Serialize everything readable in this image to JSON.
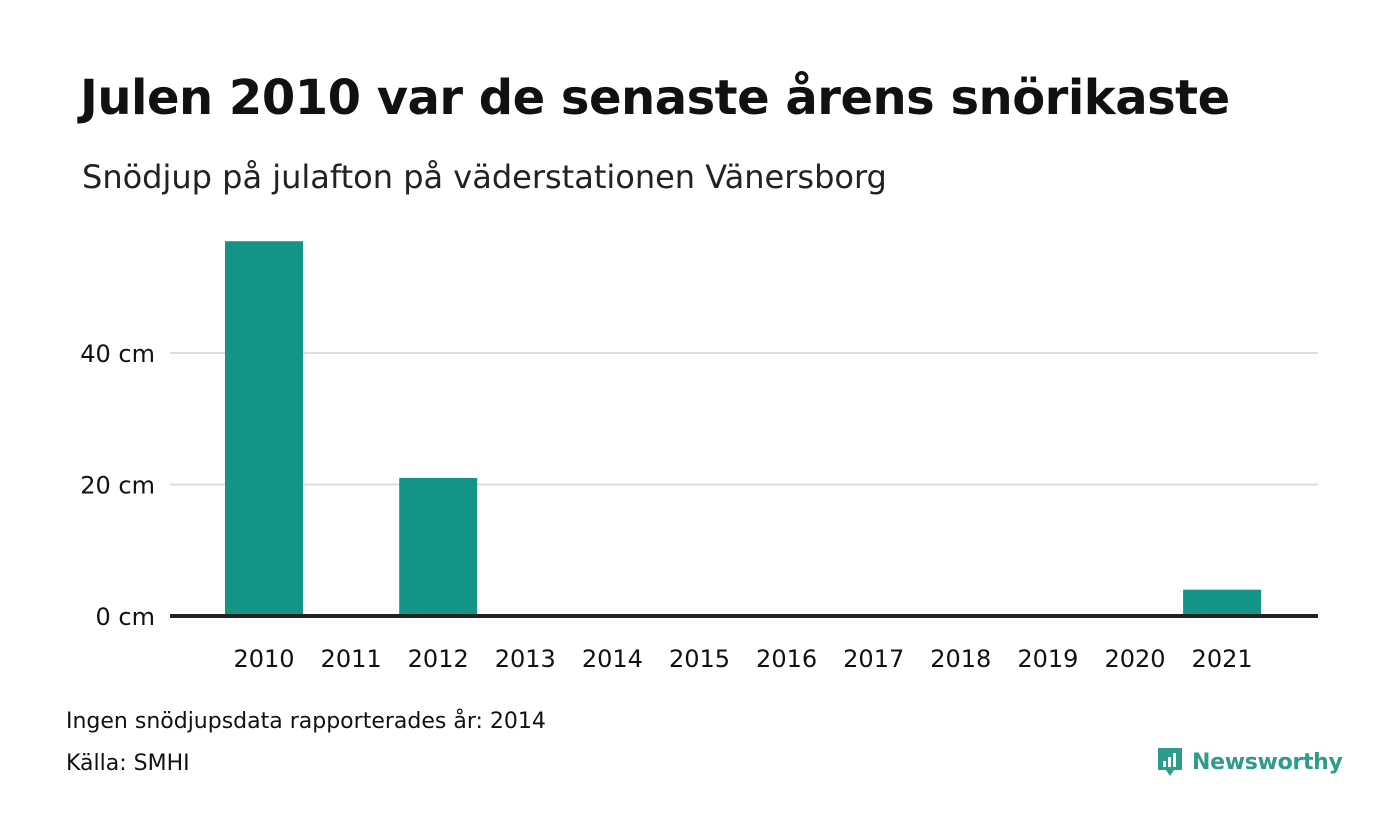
{
  "title": "Julen 2010 var de senaste årens snörikaste",
  "subtitle": "Snödjup på julafton på väderstationen Vänersborg",
  "note": "Ingen snödjupsdata rapporterades år: 2014",
  "source": "Källa: SMHI",
  "brand": "Newsworthy",
  "colors": {
    "bar": "#149486",
    "grid": "#dddddd",
    "axis": "#222222",
    "brand": "#2e9c8c"
  },
  "chart_data": {
    "type": "bar",
    "categories": [
      "2010",
      "2011",
      "2012",
      "2013",
      "2014",
      "2015",
      "2016",
      "2017",
      "2018",
      "2019",
      "2020",
      "2021"
    ],
    "values": [
      57,
      0,
      21,
      0,
      null,
      0,
      0,
      0,
      0,
      0,
      0,
      4
    ],
    "yticks": [
      0,
      20,
      40
    ],
    "ytick_labels": [
      "0 cm",
      "20 cm",
      "40 cm"
    ],
    "ylim": [
      0,
      60
    ],
    "grid": true
  }
}
